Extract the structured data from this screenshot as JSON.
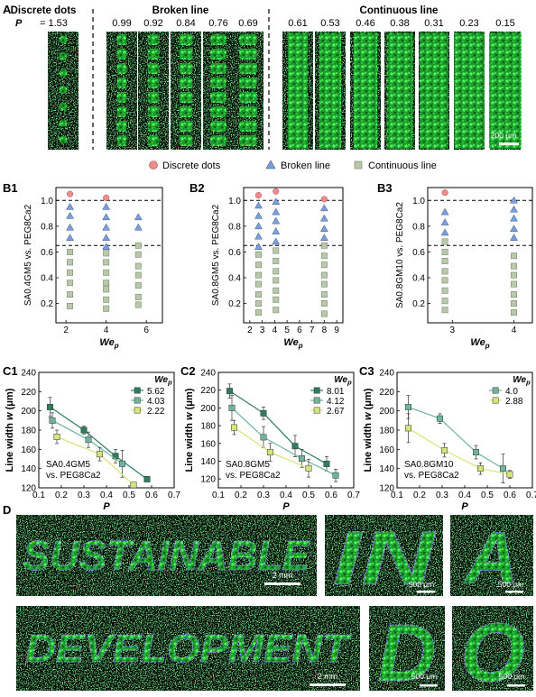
{
  "panelA": {
    "letter": "A",
    "headings": {
      "discrete": "Discrete dots",
      "broken": "Broken line",
      "continuous": "Continuous line"
    },
    "p_symbol": "P",
    "p_values": [
      "= 1.53",
      "0.99",
      "0.92",
      "0.84",
      "0.76",
      "0.69",
      "0.61",
      "0.53",
      "0.46",
      "0.38",
      "0.31",
      "0.23",
      "0.15"
    ],
    "scale": "200 μm"
  },
  "legend": {
    "dots": "Discrete dots",
    "broken": "Broken line",
    "continuous": "Continuous line"
  },
  "colors": {
    "dot": "#f08b8b",
    "triangle": "#7b9fd6",
    "square": "#b7c9a8",
    "c_dark": "#2e7d5b",
    "c_mid": "#6fb59c",
    "c_light": "#d3e57a"
  },
  "chart_data": [
    {
      "id": "B1",
      "type": "scatter",
      "ylabel": "SA0.4GM5 vs. PEG8Ca2",
      "xlabel": "We_p",
      "xlim": [
        1.5,
        6.8
      ],
      "ylim": [
        0.05,
        1.1
      ],
      "xticks": [
        2,
        4,
        6
      ],
      "yticks": [
        0.2,
        0.4,
        0.6,
        0.8,
        1.0
      ],
      "hlines": [
        1.0,
        0.65
      ],
      "dots": [
        [
          2.2,
          1.05
        ],
        [
          4.0,
          1.02
        ]
      ],
      "triangles": [
        [
          2.2,
          0.95
        ],
        [
          2.2,
          0.88
        ],
        [
          2.2,
          0.79
        ],
        [
          2.2,
          0.71
        ],
        [
          4.0,
          0.95
        ],
        [
          4.0,
          0.87
        ],
        [
          4.0,
          0.79
        ],
        [
          4.0,
          0.71
        ],
        [
          4.0,
          0.64
        ],
        [
          5.6,
          0.87
        ],
        [
          5.6,
          0.79
        ]
      ],
      "squares": [
        [
          2.2,
          0.6
        ],
        [
          2.2,
          0.52
        ],
        [
          2.2,
          0.44
        ],
        [
          2.2,
          0.36
        ],
        [
          2.2,
          0.27
        ],
        [
          2.2,
          0.18
        ],
        [
          4.0,
          0.59
        ],
        [
          4.0,
          0.52
        ],
        [
          4.0,
          0.44
        ],
        [
          4.0,
          0.36
        ],
        [
          4.0,
          0.31
        ],
        [
          4.0,
          0.23
        ],
        [
          4.0,
          0.16
        ],
        [
          5.6,
          0.65
        ],
        [
          5.6,
          0.58
        ],
        [
          5.6,
          0.49
        ],
        [
          5.6,
          0.42
        ],
        [
          5.6,
          0.34
        ],
        [
          5.6,
          0.25
        ],
        [
          5.6,
          0.19
        ]
      ]
    },
    {
      "id": "B2",
      "type": "scatter",
      "ylabel": "SA0.8GM5 vs. PEG8Ca2",
      "xlabel": "We_p",
      "xlim": [
        1.5,
        9.5
      ],
      "ylim": [
        0.05,
        1.1
      ],
      "xticks": [
        2,
        3,
        4,
        5,
        6,
        7,
        8,
        9
      ],
      "yticks": [
        0.2,
        0.4,
        0.6,
        0.8,
        1.0
      ],
      "hlines": [
        1.0,
        0.65
      ],
      "dots": [
        [
          2.7,
          1.04
        ],
        [
          4.1,
          1.07
        ],
        [
          8.0,
          1.01
        ]
      ],
      "triangles": [
        [
          2.7,
          0.96
        ],
        [
          2.7,
          0.88
        ],
        [
          2.7,
          0.8
        ],
        [
          2.7,
          0.72
        ],
        [
          2.7,
          0.64
        ],
        [
          4.1,
          0.99
        ],
        [
          4.1,
          0.91
        ],
        [
          4.1,
          0.84
        ],
        [
          4.1,
          0.76
        ],
        [
          4.1,
          0.68
        ],
        [
          8.0,
          0.94
        ],
        [
          8.0,
          0.86
        ],
        [
          8.0,
          0.78
        ],
        [
          8.0,
          0.71
        ]
      ],
      "squares": [
        [
          2.7,
          0.58
        ],
        [
          2.7,
          0.5
        ],
        [
          2.7,
          0.42
        ],
        [
          2.7,
          0.35
        ],
        [
          2.7,
          0.27
        ],
        [
          2.7,
          0.2
        ],
        [
          2.7,
          0.13
        ],
        [
          4.1,
          0.61
        ],
        [
          4.1,
          0.53
        ],
        [
          4.1,
          0.45
        ],
        [
          4.1,
          0.38
        ],
        [
          4.1,
          0.3
        ],
        [
          4.1,
          0.23
        ],
        [
          4.1,
          0.15
        ],
        [
          8.0,
          0.65
        ],
        [
          8.0,
          0.57
        ],
        [
          8.0,
          0.5
        ],
        [
          8.0,
          0.42
        ],
        [
          8.0,
          0.35
        ],
        [
          8.0,
          0.27
        ],
        [
          8.0,
          0.2
        ],
        [
          8.0,
          0.12
        ]
      ]
    },
    {
      "id": "B3",
      "type": "scatter",
      "ylabel": "SA0.8GM10 vs. PEG8Ca2",
      "xlabel": "We_p",
      "xlim": [
        2.6,
        4.3
      ],
      "ylim": [
        0.05,
        1.1
      ],
      "xticks": [
        3,
        4
      ],
      "yticks": [
        0.2,
        0.4,
        0.6,
        0.8,
        1.0
      ],
      "hlines": [
        1.0,
        0.65
      ],
      "dots": [
        [
          2.88,
          1.06
        ]
      ],
      "triangles": [
        [
          2.88,
          0.91
        ],
        [
          2.88,
          0.83
        ],
        [
          2.88,
          0.75
        ],
        [
          4.0,
          1.0
        ],
        [
          4.0,
          0.93
        ],
        [
          4.0,
          0.86
        ],
        [
          4.0,
          0.78
        ],
        [
          4.0,
          0.71
        ]
      ],
      "squares": [
        [
          2.88,
          0.68
        ],
        [
          2.88,
          0.6
        ],
        [
          2.88,
          0.53
        ],
        [
          2.88,
          0.45
        ],
        [
          2.88,
          0.38
        ],
        [
          2.88,
          0.3
        ],
        [
          2.88,
          0.22
        ],
        [
          2.88,
          0.15
        ],
        [
          4.0,
          0.57
        ],
        [
          4.0,
          0.49
        ],
        [
          4.0,
          0.42
        ],
        [
          4.0,
          0.35
        ],
        [
          4.0,
          0.27
        ],
        [
          4.0,
          0.2
        ],
        [
          4.0,
          0.13
        ]
      ]
    },
    {
      "id": "C1",
      "type": "line",
      "ylabel": "Line width w (μm)",
      "xlabel": "P",
      "xlim": [
        0.1,
        0.7
      ],
      "ylim": [
        120,
        240
      ],
      "xticks": [
        0.1,
        0.2,
        0.3,
        0.4,
        0.5,
        0.6,
        0.7
      ],
      "yticks": [
        120,
        140,
        160,
        180,
        200,
        220,
        240
      ],
      "note": [
        "SA0.4GM5",
        "vs. PEG8Ca2"
      ],
      "legend_title": "We_p",
      "series": [
        {
          "name": "5.62",
          "color": "#2e7d5b",
          "points": [
            [
              0.15,
              204,
              10
            ],
            [
              0.3,
              180,
              4
            ],
            [
              0.44,
              153,
              7
            ],
            [
              0.58,
              129,
              0
            ]
          ]
        },
        {
          "name": "4.03",
          "color": "#6fb59c",
          "points": [
            [
              0.16,
              190,
              8
            ],
            [
              0.32,
              170,
              8
            ],
            [
              0.47,
              145,
              14
            ]
          ]
        },
        {
          "name": "2.22",
          "color": "#d3e57a",
          "points": [
            [
              0.18,
              173,
              7
            ],
            [
              0.37,
              155,
              7
            ],
            [
              0.52,
              123,
              0
            ]
          ]
        }
      ]
    },
    {
      "id": "C2",
      "type": "line",
      "ylabel": "Line width w (μm)",
      "xlabel": "P",
      "xlim": [
        0.1,
        0.7
      ],
      "ylim": [
        110,
        240
      ],
      "xticks": [
        0.1,
        0.2,
        0.3,
        0.4,
        0.5,
        0.6,
        0.7
      ],
      "yticks": [
        120,
        140,
        160,
        180,
        200,
        220,
        240
      ],
      "note": [
        "SA0.8GM5",
        "vs. PEG8Ca2"
      ],
      "legend_title": "We_p",
      "series": [
        {
          "name": "8.01",
          "color": "#2e7d5b",
          "points": [
            [
              0.15,
              219,
              8
            ],
            [
              0.3,
              194,
              7
            ],
            [
              0.44,
              157,
              12
            ],
            [
              0.58,
              137,
              8
            ]
          ]
        },
        {
          "name": "4.12",
          "color": "#6fb59c",
          "points": [
            [
              0.16,
              200,
              14
            ],
            [
              0.3,
              167,
              12
            ],
            [
              0.47,
              143,
              10
            ],
            [
              0.62,
              124,
              7
            ]
          ]
        },
        {
          "name": "2.67",
          "color": "#d3e57a",
          "points": [
            [
              0.17,
              178,
              8
            ],
            [
              0.33,
              150,
              10
            ],
            [
              0.5,
              132,
              10
            ]
          ]
        }
      ]
    },
    {
      "id": "C3",
      "type": "line",
      "ylabel": "Line width w (μm)",
      "xlabel": "P",
      "xlim": [
        0.1,
        0.7
      ],
      "ylim": [
        120,
        240
      ],
      "xticks": [
        0.1,
        0.2,
        0.3,
        0.4,
        0.5,
        0.6,
        0.7
      ],
      "yticks": [
        120,
        140,
        160,
        180,
        200,
        220,
        240
      ],
      "note": [
        "SA0.8GM10",
        "vs. PEG8Ca2"
      ],
      "legend_title": "We_p",
      "series": [
        {
          "name": "4.0",
          "color": "#6fb59c",
          "points": [
            [
              0.15,
              204,
              12
            ],
            [
              0.29,
              192,
              5
            ],
            [
              0.45,
              157,
              7
            ],
            [
              0.57,
              140,
              15
            ]
          ]
        },
        {
          "name": "2.88",
          "color": "#d3e57a",
          "points": [
            [
              0.15,
              182,
              15
            ],
            [
              0.31,
              159,
              7
            ],
            [
              0.47,
              140,
              6
            ],
            [
              0.6,
              134,
              4
            ]
          ]
        }
      ]
    }
  ],
  "panelD": {
    "letter": "D",
    "word1": "SUSTAINABLE",
    "word2": "DEVELOPMENT",
    "l1": "IN",
    "l2": "A",
    "l3": "D",
    "l4": "O",
    "scale_mm": "2 mm",
    "scale_um": "500 μm"
  }
}
